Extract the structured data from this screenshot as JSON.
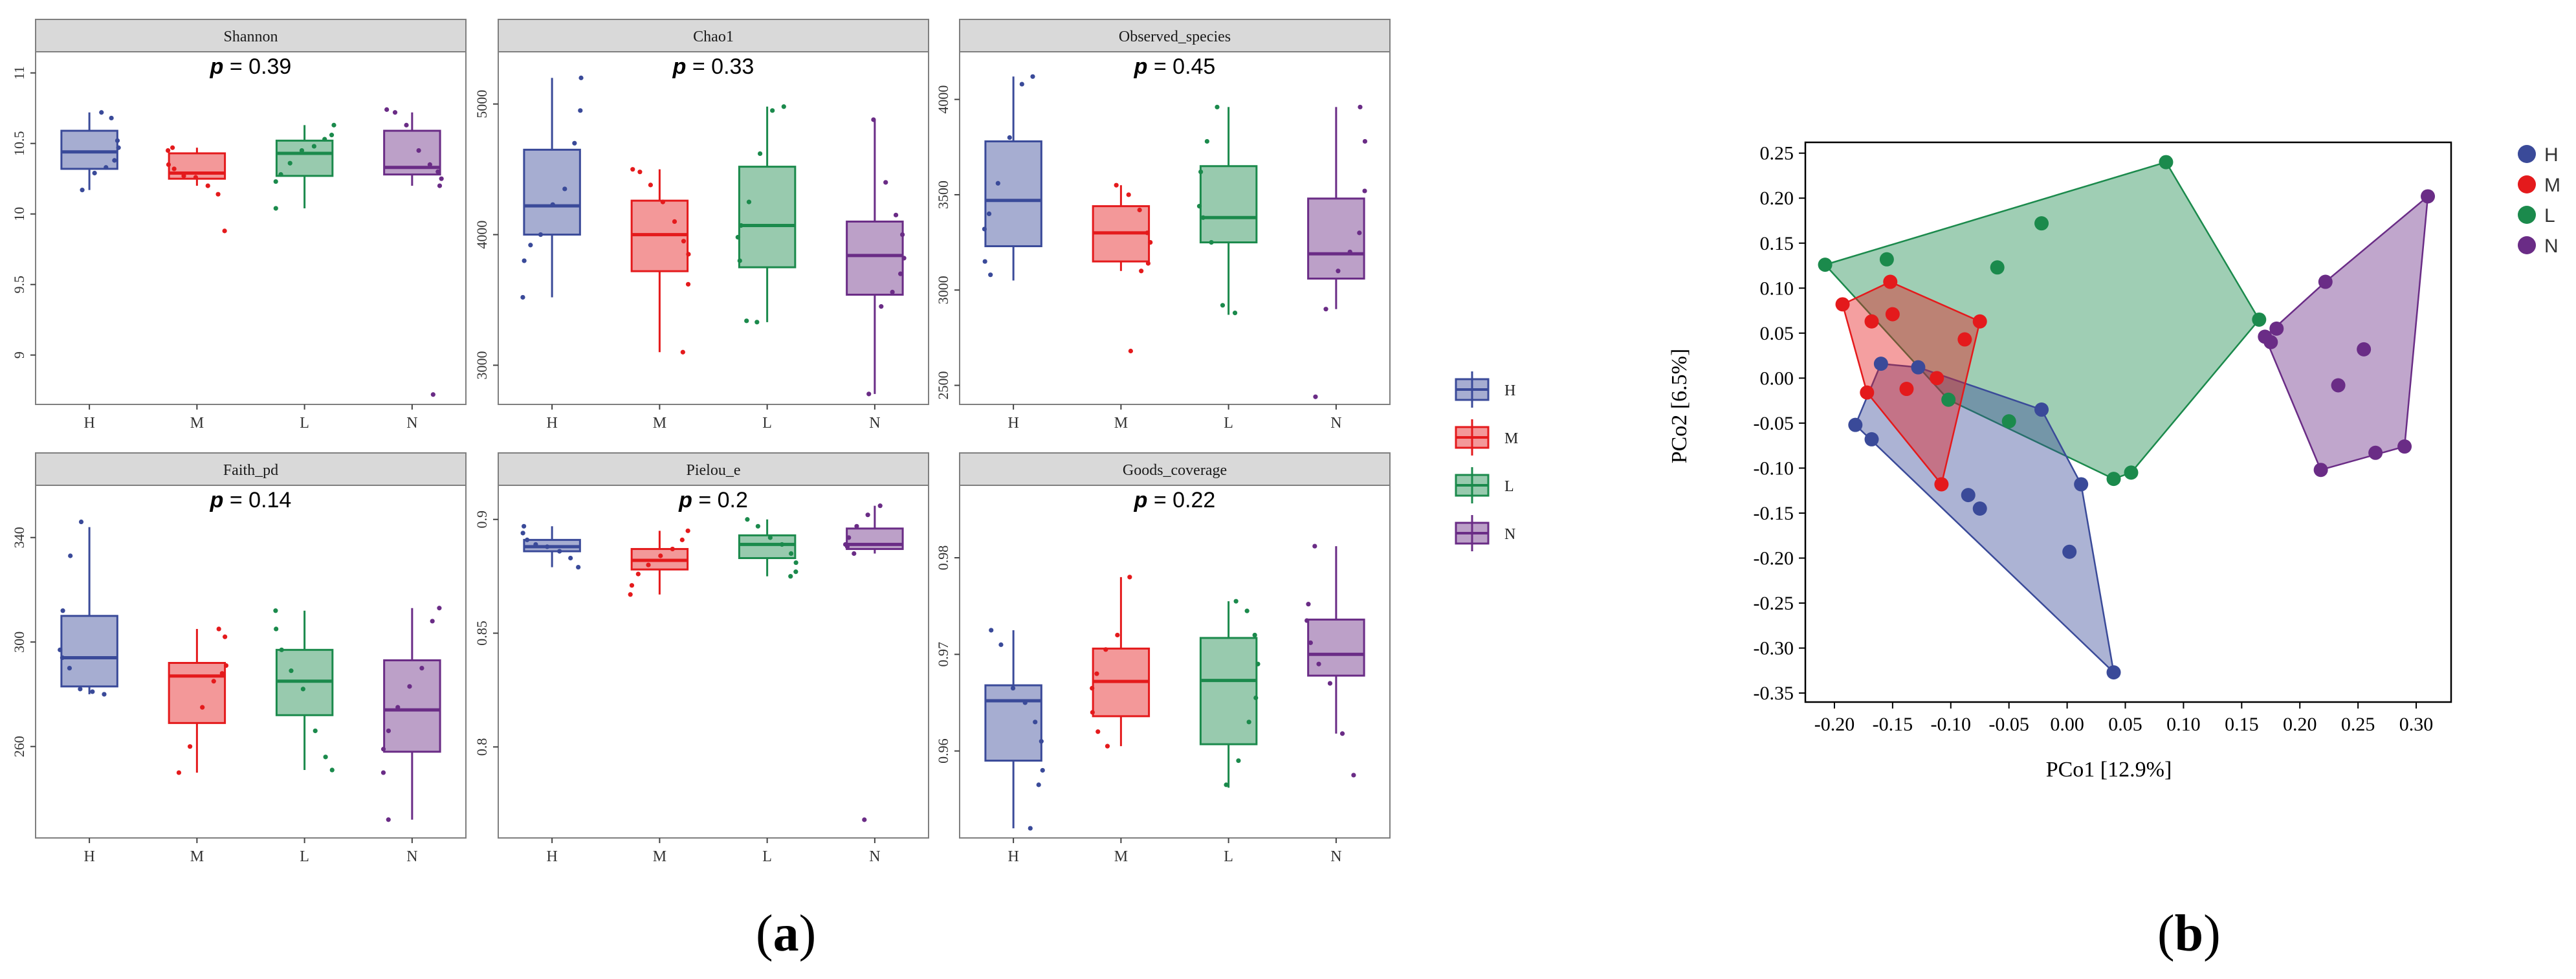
{
  "figure": {
    "label_a": "a",
    "label_b": "b"
  },
  "colors": {
    "H": "#3A4A99",
    "M": "#E41A1C",
    "L": "#1B8A4C",
    "N": "#6A2C86",
    "strip": "#D9D9D9",
    "panel_border": "#7F7F7F"
  },
  "legend_a": {
    "entries": [
      "H",
      "M",
      "L",
      "N"
    ]
  },
  "chart_data": [
    {
      "type": "box",
      "title": "Shannon",
      "pvalue_label": "p",
      "pvalue_text": " = 0.39",
      "categories": [
        "H",
        "M",
        "L",
        "N"
      ],
      "ylim": [
        8.65,
        11.15
      ],
      "yticks": [
        9.0,
        9.5,
        10.0,
        10.5,
        11.0
      ],
      "boxes": [
        {
          "q1": 10.32,
          "median": 10.44,
          "q3": 10.59,
          "lo": 10.17,
          "hi": 10.72
        },
        {
          "q1": 10.25,
          "median": 10.29,
          "q3": 10.43,
          "lo": 10.2,
          "hi": 10.47
        },
        {
          "q1": 10.27,
          "median": 10.43,
          "q3": 10.52,
          "lo": 10.04,
          "hi": 10.63
        },
        {
          "q1": 10.28,
          "median": 10.33,
          "q3": 10.59,
          "lo": 10.2,
          "hi": 10.72
        }
      ],
      "points": [
        [
          10.72,
          10.68,
          10.52,
          10.47,
          10.38,
          10.33,
          10.29,
          10.17
        ],
        [
          10.47,
          10.45,
          10.35,
          10.32,
          10.27,
          10.26,
          10.2,
          10.14,
          9.88
        ],
        [
          10.63,
          10.56,
          10.53,
          10.48,
          10.45,
          10.36,
          10.28,
          10.23,
          10.04
        ],
        [
          10.74,
          10.72,
          10.63,
          10.45,
          10.35,
          10.3,
          10.25,
          10.2,
          8.72
        ]
      ]
    },
    {
      "type": "box",
      "title": "Chao1",
      "pvalue_label": "p",
      "pvalue_text": " = 0.33",
      "categories": [
        "H",
        "M",
        "L",
        "N"
      ],
      "ylim": [
        2700,
        5400
      ],
      "yticks": [
        3000,
        4000,
        5000
      ],
      "boxes": [
        {
          "q1": 4000,
          "median": 4220,
          "q3": 4650,
          "lo": 3520,
          "hi": 5200
        },
        {
          "q1": 3720,
          "median": 4000,
          "q3": 4260,
          "lo": 3100,
          "hi": 4500
        },
        {
          "q1": 3750,
          "median": 4070,
          "q3": 4520,
          "lo": 3330,
          "hi": 4980
        },
        {
          "q1": 3540,
          "median": 3840,
          "q3": 4100,
          "lo": 2780,
          "hi": 4880
        }
      ],
      "points": [
        [
          5200,
          4950,
          4700,
          4350,
          4230,
          4000,
          3920,
          3800,
          3520
        ],
        [
          4500,
          4480,
          4380,
          4250,
          4100,
          3950,
          3850,
          3620,
          3100
        ],
        [
          4980,
          4950,
          4620,
          4250,
          4070,
          3980,
          3800,
          3340,
          3330
        ],
        [
          4880,
          4400,
          4150,
          4000,
          3820,
          3700,
          3560,
          3450,
          2780
        ]
      ]
    },
    {
      "type": "box",
      "title": "Observed_species",
      "pvalue_label": "p",
      "pvalue_text": " = 0.45",
      "categories": [
        "H",
        "M",
        "L",
        "N"
      ],
      "ylim": [
        2400,
        4250
      ],
      "yticks": [
        2500,
        3000,
        3500,
        4000
      ],
      "boxes": [
        {
          "q1": 3230,
          "median": 3470,
          "q3": 3780,
          "lo": 3050,
          "hi": 4120
        },
        {
          "q1": 3150,
          "median": 3300,
          "q3": 3440,
          "lo": 3100,
          "hi": 3550
        },
        {
          "q1": 3250,
          "median": 3380,
          "q3": 3650,
          "lo": 2870,
          "hi": 3960
        },
        {
          "q1": 3060,
          "median": 3190,
          "q3": 3480,
          "lo": 2900,
          "hi": 3960
        }
      ],
      "points": [
        [
          4120,
          4080,
          3800,
          3560,
          3400,
          3320,
          3150,
          3080
        ],
        [
          3550,
          3500,
          3420,
          3300,
          3250,
          3140,
          3100,
          2680
        ],
        [
          3960,
          3780,
          3620,
          3440,
          3380,
          3250,
          2920,
          2880
        ],
        [
          3960,
          3780,
          3520,
          3300,
          3200,
          3100,
          2900,
          2440
        ]
      ]
    },
    {
      "type": "box",
      "title": "Faith_pd",
      "pvalue_label": "p",
      "pvalue_text": " = 0.14",
      "categories": [
        "H",
        "M",
        "L",
        "N"
      ],
      "ylim": [
        225,
        360
      ],
      "yticks": [
        260,
        300,
        340
      ],
      "boxes": [
        {
          "q1": 283,
          "median": 294,
          "q3": 310,
          "lo": 280,
          "hi": 344
        },
        {
          "q1": 269,
          "median": 287,
          "q3": 292,
          "lo": 250,
          "hi": 305
        },
        {
          "q1": 272,
          "median": 285,
          "q3": 297,
          "lo": 251,
          "hi": 312
        },
        {
          "q1": 258,
          "median": 274,
          "q3": 293,
          "lo": 232,
          "hi": 313
        }
      ],
      "points": [
        [
          346,
          333,
          312,
          297,
          294,
          290,
          282,
          281,
          280
        ],
        [
          305,
          302,
          291,
          288,
          285,
          275,
          260,
          250
        ],
        [
          312,
          305,
          297,
          289,
          282,
          266,
          256,
          251
        ],
        [
          313,
          308,
          290,
          283,
          275,
          266,
          259,
          250,
          232
        ]
      ]
    },
    {
      "type": "box",
      "title": "Pielou_e",
      "pvalue_label": "p",
      "pvalue_text": " = 0.2",
      "categories": [
        "H",
        "M",
        "L",
        "N"
      ],
      "ylim": [
        0.76,
        0.915
      ],
      "yticks": [
        0.8,
        0.85,
        0.9
      ],
      "boxes": [
        {
          "q1": 0.886,
          "median": 0.888,
          "q3": 0.891,
          "lo": 0.879,
          "hi": 0.897
        },
        {
          "q1": 0.878,
          "median": 0.882,
          "q3": 0.887,
          "lo": 0.867,
          "hi": 0.895
        },
        {
          "q1": 0.883,
          "median": 0.889,
          "q3": 0.893,
          "lo": 0.875,
          "hi": 0.9
        },
        {
          "q1": 0.887,
          "median": 0.889,
          "q3": 0.896,
          "lo": 0.885,
          "hi": 0.906
        }
      ],
      "points": [
        [
          0.897,
          0.894,
          0.891,
          0.889,
          0.888,
          0.886,
          0.883,
          0.879
        ],
        [
          0.895,
          0.891,
          0.887,
          0.884,
          0.88,
          0.876,
          0.871,
          0.867
        ],
        [
          0.9,
          0.897,
          0.892,
          0.889,
          0.885,
          0.881,
          0.877,
          0.875
        ],
        [
          0.906,
          0.902,
          0.897,
          0.892,
          0.889,
          0.888,
          0.885,
          0.768
        ]
      ]
    },
    {
      "type": "box",
      "title": "Goods_coverage",
      "pvalue_label": "p",
      "pvalue_text": " = 0.22",
      "categories": [
        "H",
        "M",
        "L",
        "N"
      ],
      "ylim": [
        0.951,
        0.9875
      ],
      "yticks": [
        0.96,
        0.97,
        0.98
      ],
      "boxes": [
        {
          "q1": 0.959,
          "median": 0.9652,
          "q3": 0.9668,
          "lo": 0.952,
          "hi": 0.9725
        },
        {
          "q1": 0.9636,
          "median": 0.9672,
          "q3": 0.9706,
          "lo": 0.9605,
          "hi": 0.978
        },
        {
          "q1": 0.9607,
          "median": 0.9673,
          "q3": 0.9717,
          "lo": 0.9562,
          "hi": 0.9755
        },
        {
          "q1": 0.9678,
          "median": 0.97,
          "q3": 0.9736,
          "lo": 0.9618,
          "hi": 0.9812
        }
      ],
      "points": [
        [
          0.9725,
          0.971,
          0.9665,
          0.965,
          0.963,
          0.961,
          0.958,
          0.9565,
          0.952
        ],
        [
          0.978,
          0.972,
          0.9705,
          0.968,
          0.9665,
          0.964,
          0.962,
          0.9605
        ],
        [
          0.9755,
          0.9745,
          0.972,
          0.969,
          0.9655,
          0.963,
          0.959,
          0.9565
        ],
        [
          0.9812,
          0.9752,
          0.9735,
          0.9712,
          0.969,
          0.967,
          0.9618,
          0.9575
        ]
      ]
    },
    {
      "type": "scatter",
      "xlabel": "PCo1 [12.9%]",
      "ylabel": "PCo2 [6.5%]",
      "xlim": [
        -0.225,
        0.33
      ],
      "ylim": [
        -0.36,
        0.262
      ],
      "xticks": [
        -0.2,
        -0.15,
        -0.1,
        -0.05,
        0,
        0.05,
        0.1,
        0.15,
        0.2,
        0.25,
        0.3
      ],
      "xtick_labels": [
        "-0.20",
        "-0.15",
        "-0.10",
        "-0.05",
        "0.00",
        "0.05",
        "0.10",
        "0.15",
        "0.20",
        "0.25",
        "0.30"
      ],
      "yticks": [
        0.25,
        0.2,
        0.15,
        0.1,
        0.05,
        0,
        -0.05,
        -0.1,
        -0.15,
        -0.2,
        -0.25,
        -0.3,
        -0.35
      ],
      "ytick_labels": [
        "0.25",
        "0.20",
        "0.15",
        "0.10",
        "0.05",
        "0.00",
        "-0.05",
        "-0.10",
        "-0.15",
        "-0.20",
        "-0.25",
        "-0.30",
        "-0.35"
      ],
      "legend": [
        "H",
        "M",
        "L",
        "N"
      ],
      "series": [
        {
          "name": "H",
          "points": [
            [
              -0.182,
              -0.052
            ],
            [
              -0.168,
              -0.068
            ],
            [
              -0.16,
              0.016
            ],
            [
              -0.128,
              0.012
            ],
            [
              -0.085,
              -0.13
            ],
            [
              -0.075,
              -0.145
            ],
            [
              -0.022,
              -0.035
            ],
            [
              0.002,
              -0.193
            ],
            [
              0.012,
              -0.118
            ],
            [
              0.04,
              -0.327
            ]
          ]
        },
        {
          "name": "M",
          "points": [
            [
              -0.193,
              0.082
            ],
            [
              -0.172,
              -0.016
            ],
            [
              -0.168,
              0.063
            ],
            [
              -0.152,
              0.107
            ],
            [
              -0.15,
              0.071
            ],
            [
              -0.138,
              -0.012
            ],
            [
              -0.112,
              0.0
            ],
            [
              -0.108,
              -0.118
            ],
            [
              -0.088,
              0.043
            ],
            [
              -0.075,
              0.063
            ]
          ]
        },
        {
          "name": "L",
          "points": [
            [
              -0.208,
              0.126
            ],
            [
              -0.155,
              0.132
            ],
            [
              -0.102,
              -0.024
            ],
            [
              -0.06,
              0.123
            ],
            [
              -0.05,
              -0.048
            ],
            [
              -0.022,
              0.172
            ],
            [
              0.04,
              -0.112
            ],
            [
              0.055,
              -0.105
            ],
            [
              0.085,
              0.24
            ],
            [
              0.165,
              0.065
            ]
          ]
        },
        {
          "name": "N",
          "points": [
            [
              0.17,
              0.046
            ],
            [
              0.175,
              0.04
            ],
            [
              0.18,
              0.055
            ],
            [
              0.218,
              -0.102
            ],
            [
              0.222,
              0.107
            ],
            [
              0.233,
              -0.008
            ],
            [
              0.255,
              0.032
            ],
            [
              0.265,
              -0.083
            ],
            [
              0.29,
              -0.076
            ],
            [
              0.31,
              0.202
            ]
          ]
        }
      ]
    }
  ]
}
